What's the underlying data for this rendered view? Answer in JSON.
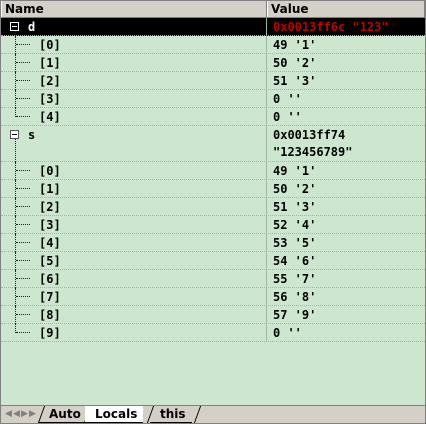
{
  "header": {
    "name": "Name",
    "value": "Value"
  },
  "rows": [
    {
      "name": "d",
      "value": "0x0013ff6c \"123\"",
      "root": true,
      "selected": true
    },
    {
      "name": "[0]",
      "value": "49 '1'"
    },
    {
      "name": "[1]",
      "value": "50 '2'"
    },
    {
      "name": "[2]",
      "value": "51 '3'"
    },
    {
      "name": "[3]",
      "value": "0 ''"
    },
    {
      "name": "[4]",
      "value": "0 ''",
      "last": true
    },
    {
      "name": "s",
      "value": "0x0013ff74\n\"123456789\"",
      "root": true,
      "tall": true
    },
    {
      "name": "[0]",
      "value": "49 '1'"
    },
    {
      "name": "[1]",
      "value": "50 '2'"
    },
    {
      "name": "[2]",
      "value": "51 '3'"
    },
    {
      "name": "[3]",
      "value": "52 '4'"
    },
    {
      "name": "[4]",
      "value": "53 '5'"
    },
    {
      "name": "[5]",
      "value": "54 '6'"
    },
    {
      "name": "[6]",
      "value": "55 '7'"
    },
    {
      "name": "[7]",
      "value": "56 '8'"
    },
    {
      "name": "[8]",
      "value": "57 '9'"
    },
    {
      "name": "[9]",
      "value": "0 ''",
      "last": true
    }
  ],
  "tabs": [
    {
      "label": "Auto",
      "active": false
    },
    {
      "label": "Locals",
      "active": true
    },
    {
      "label": "this",
      "active": false
    }
  ],
  "colors": {
    "background": "#cde6cf",
    "selected_bg": "#000000",
    "selected_value": "#c00000"
  }
}
